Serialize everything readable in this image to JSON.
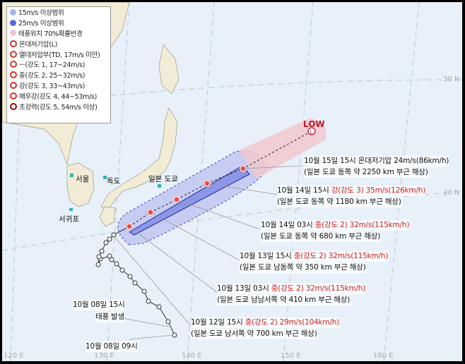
{
  "legend": {
    "items": [
      {
        "icon": "blue-light-circle-icon",
        "label": "15m/s 이상범위",
        "color": "#a9b4ec"
      },
      {
        "icon": "blue-circle-icon",
        "label": "25m/s 이상범위",
        "color": "#5c6ad8"
      },
      {
        "icon": "pink-circle-icon",
        "label": "태풍위치 70%확률반경",
        "color": "#f2c6cc"
      },
      {
        "icon": "extratropical-low-icon",
        "label": "온대저기압(L)",
        "color": "#d0342c"
      },
      {
        "icon": "tropical-depression-icon",
        "label": "열대저압부(TD, 17m/s 미만)",
        "color": "#d0342c"
      },
      {
        "icon": "typhoon-weak-icon",
        "label": "ㅡ(강도 1, 17~24m/s)",
        "color": "#d0342c"
      },
      {
        "icon": "typhoon-medium-icon",
        "label": "중(강도 2, 25~32m/s)",
        "color": "#d0342c"
      },
      {
        "icon": "typhoon-strong-icon",
        "label": "강(강도 3, 33~43m/s)",
        "color": "#d0342c"
      },
      {
        "icon": "typhoon-very-strong-icon",
        "label": "매우강(강도 4, 44~53m/s)",
        "color": "#d0342c"
      },
      {
        "icon": "typhoon-super-strong-icon",
        "label": "초강력(강도 5, 54m/s 이상)",
        "color": "#8a1010"
      }
    ]
  },
  "places": {
    "seoul": "서울",
    "dokdo": "독도",
    "tokyo": "일본 도쿄",
    "seogwipo": "서귀포"
  },
  "low_label": "LOW",
  "axes": {
    "lon": [
      "120 E",
      "130 E",
      "140 E",
      "150 E",
      "160 E"
    ],
    "lat": [
      "30 N",
      "20 N"
    ]
  },
  "forecasts": [
    {
      "time": "10월 15일 15시",
      "intensity": "온대저기압 24m/s(86km/h)",
      "location": "(일본 도쿄 동쪽 약 2250 km 부근 해상)",
      "red": false
    },
    {
      "time": "10월 14일 15시",
      "intensity": "강(강도 3) 35m/s(126km/h)",
      "location": "(일본 도쿄 동쪽 약 1180 km 부근 해상)",
      "red": true
    },
    {
      "time": "10월 14일 03시",
      "intensity": "중(강도 2) 32m/s(115km/h)",
      "location": "(일본 도쿄 동쪽 약 680 km 부근 해상)",
      "red": true
    },
    {
      "time": "10월 13일 15시",
      "intensity": "중(강도 2) 32m/s(115km/h)",
      "location": "(일본 도쿄 남동쪽 약 350 km 부근 해상)",
      "red": true
    },
    {
      "time": "10월 13일 03시",
      "intensity": "중(강도 2) 32m/s(115km/h)",
      "location": "(일본 도쿄 남남서쪽 약 410 km 부근 해상)",
      "red": true
    },
    {
      "time": "10월 12일 15시",
      "intensity": "중(강도 2) 29m/s(104km/h)",
      "location": "(일본 도쿄 남서쪽 약 700 km 부근 해상)",
      "red": true
    }
  ],
  "history": [
    {
      "time": "10월 08일 15시",
      "note": "태풍 발생"
    },
    {
      "time": "10월 08일 09시"
    }
  ],
  "colors": {
    "sea": "#e8f1f9",
    "land": "#f2ecd6",
    "track": "#c0182a"
  }
}
